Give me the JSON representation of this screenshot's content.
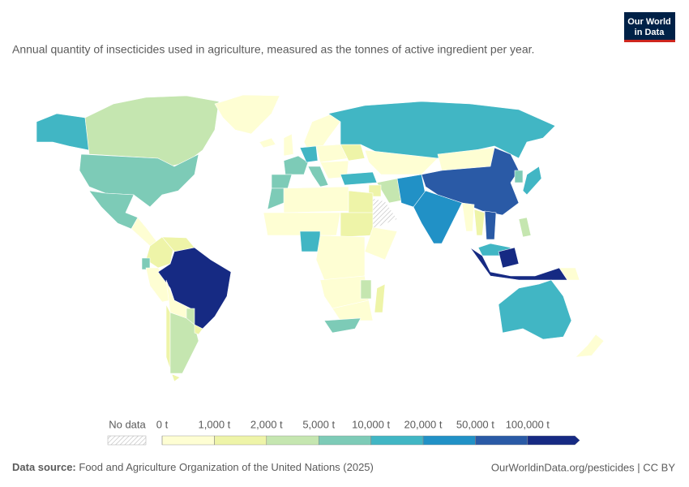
{
  "header": {
    "title": "Annual quantity of insecticides used in agriculture, measured as the tonnes of active ingredient per year.",
    "logo": [
      "Our World",
      "in Data"
    ]
  },
  "legend": {
    "no_data": "No data",
    "bins": [
      {
        "value": 0,
        "label": "0 t"
      },
      {
        "value": 1000,
        "label": "1,000 t"
      },
      {
        "value": 2000,
        "label": "2,000 t"
      },
      {
        "value": 5000,
        "label": "5,000 t"
      },
      {
        "value": 10000,
        "label": "10,000 t"
      },
      {
        "value": 20000,
        "label": "20,000 t"
      },
      {
        "value": 50000,
        "label": "50,000 t"
      },
      {
        "value": 100000,
        "label": "100,000 t"
      }
    ],
    "colors": [
      "#fefed3",
      "#eef4a8",
      "#c5e6b0",
      "#7dcbb7",
      "#41b6c4",
      "#2191c6",
      "#2a5aa6",
      "#162a83"
    ]
  },
  "footer": {
    "source_label": "Data source:",
    "source": "Food and Agriculture Organization of the United Nations (2025)",
    "link": "OurWorldinData.org/pesticides | CC BY"
  }
}
